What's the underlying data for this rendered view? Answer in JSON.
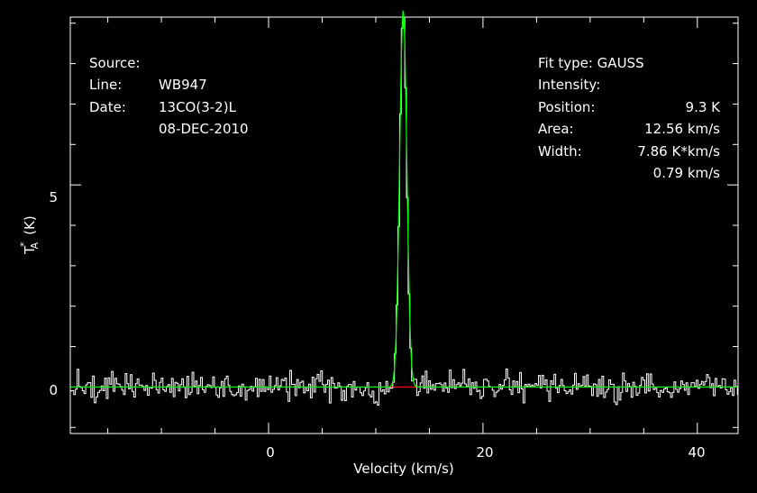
{
  "info_left": {
    "source_label": "Source:",
    "source_value": "WB947",
    "line_label": "Line:",
    "line_value": "13CO(3-2)L",
    "date_label": "Date:",
    "date_value": "08-DEC-2010"
  },
  "info_right": {
    "fit_label": "Fit type: GAUSS",
    "intensity_label": "Intensity:",
    "intensity_value": "9.3 K",
    "position_label": "Position:",
    "position_value": "12.56 km/s",
    "area_label": "Area:",
    "area_value": "7.86 K*km/s",
    "width_label": "Width:",
    "width_value": "0.79 km/s"
  },
  "colors": {
    "background": "#000000",
    "axes": "#ffffff",
    "spectrum": "#ffffff",
    "fit": "#00ff00",
    "baseline": "#ff0000"
  },
  "chart_data": {
    "type": "line",
    "title": "",
    "xlabel": "Velocity (km/s)",
    "ylabel": "T_A* (K)",
    "ylabel_main": "T",
    "ylabel_sub": "A",
    "ylabel_sup": "*",
    "ylabel_rest": "(K)",
    "xlim": [
      -18.5,
      43.8
    ],
    "ylim": [
      -1.15,
      9.15
    ],
    "x_ticks": [
      0,
      20,
      40
    ],
    "x_tick_labels": [
      "0",
      "20",
      "40"
    ],
    "y_ticks": [
      0,
      5
    ],
    "y_tick_labels": [
      "0",
      "5"
    ],
    "gaussian_fit": {
      "amplitude_K": 9.3,
      "center_kms": 12.56,
      "fwhm_kms": 0.79,
      "area_Kkms": 7.86
    },
    "baseline_range": [
      11.3,
      13.8
    ],
    "noise_rms_K": 0.17,
    "channel_width_kms": 0.16,
    "grid": false,
    "legend": "none"
  }
}
